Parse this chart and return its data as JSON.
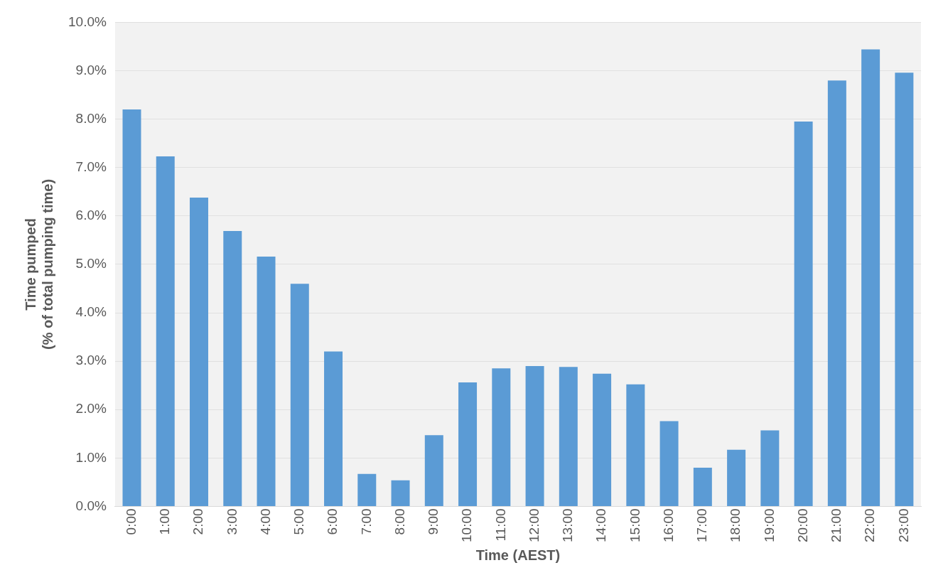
{
  "chart_data": {
    "type": "bar",
    "xlabel": "Time (AEST)",
    "ylabel": "Time pumped\n(% of total pumping time)",
    "categories": [
      "0:00",
      "1:00",
      "2:00",
      "3:00",
      "4:00",
      "5:00",
      "6:00",
      "7:00",
      "8:00",
      "9:00",
      "10:00",
      "11:00",
      "12:00",
      "13:00",
      "14:00",
      "15:00",
      "16:00",
      "17:00",
      "18:00",
      "19:00",
      "20:00",
      "21:00",
      "22:00",
      "23:00"
    ],
    "values": [
      8.2,
      7.23,
      6.38,
      5.69,
      5.16,
      4.6,
      3.2,
      0.67,
      0.54,
      1.47,
      2.56,
      2.85,
      2.9,
      2.88,
      2.74,
      2.52,
      1.76,
      0.8,
      1.17,
      1.57,
      7.95,
      8.8,
      9.44,
      8.96
    ],
    "color": "#5b9bd5",
    "ylim": [
      0,
      10
    ],
    "yticks": [
      {
        "value": 0,
        "label": "0.0%"
      },
      {
        "value": 1,
        "label": "1.0%"
      },
      {
        "value": 2,
        "label": "2.0%"
      },
      {
        "value": 3,
        "label": "3.0%"
      },
      {
        "value": 4,
        "label": "4.0%"
      },
      {
        "value": 5,
        "label": "5.0%"
      },
      {
        "value": 6,
        "label": "6.0%"
      },
      {
        "value": 7,
        "label": "7.0%"
      },
      {
        "value": 8,
        "label": "8.0%"
      },
      {
        "value": 9,
        "label": "9.0%"
      },
      {
        "value": 10,
        "label": "10.0%"
      }
    ],
    "grid": "y"
  }
}
